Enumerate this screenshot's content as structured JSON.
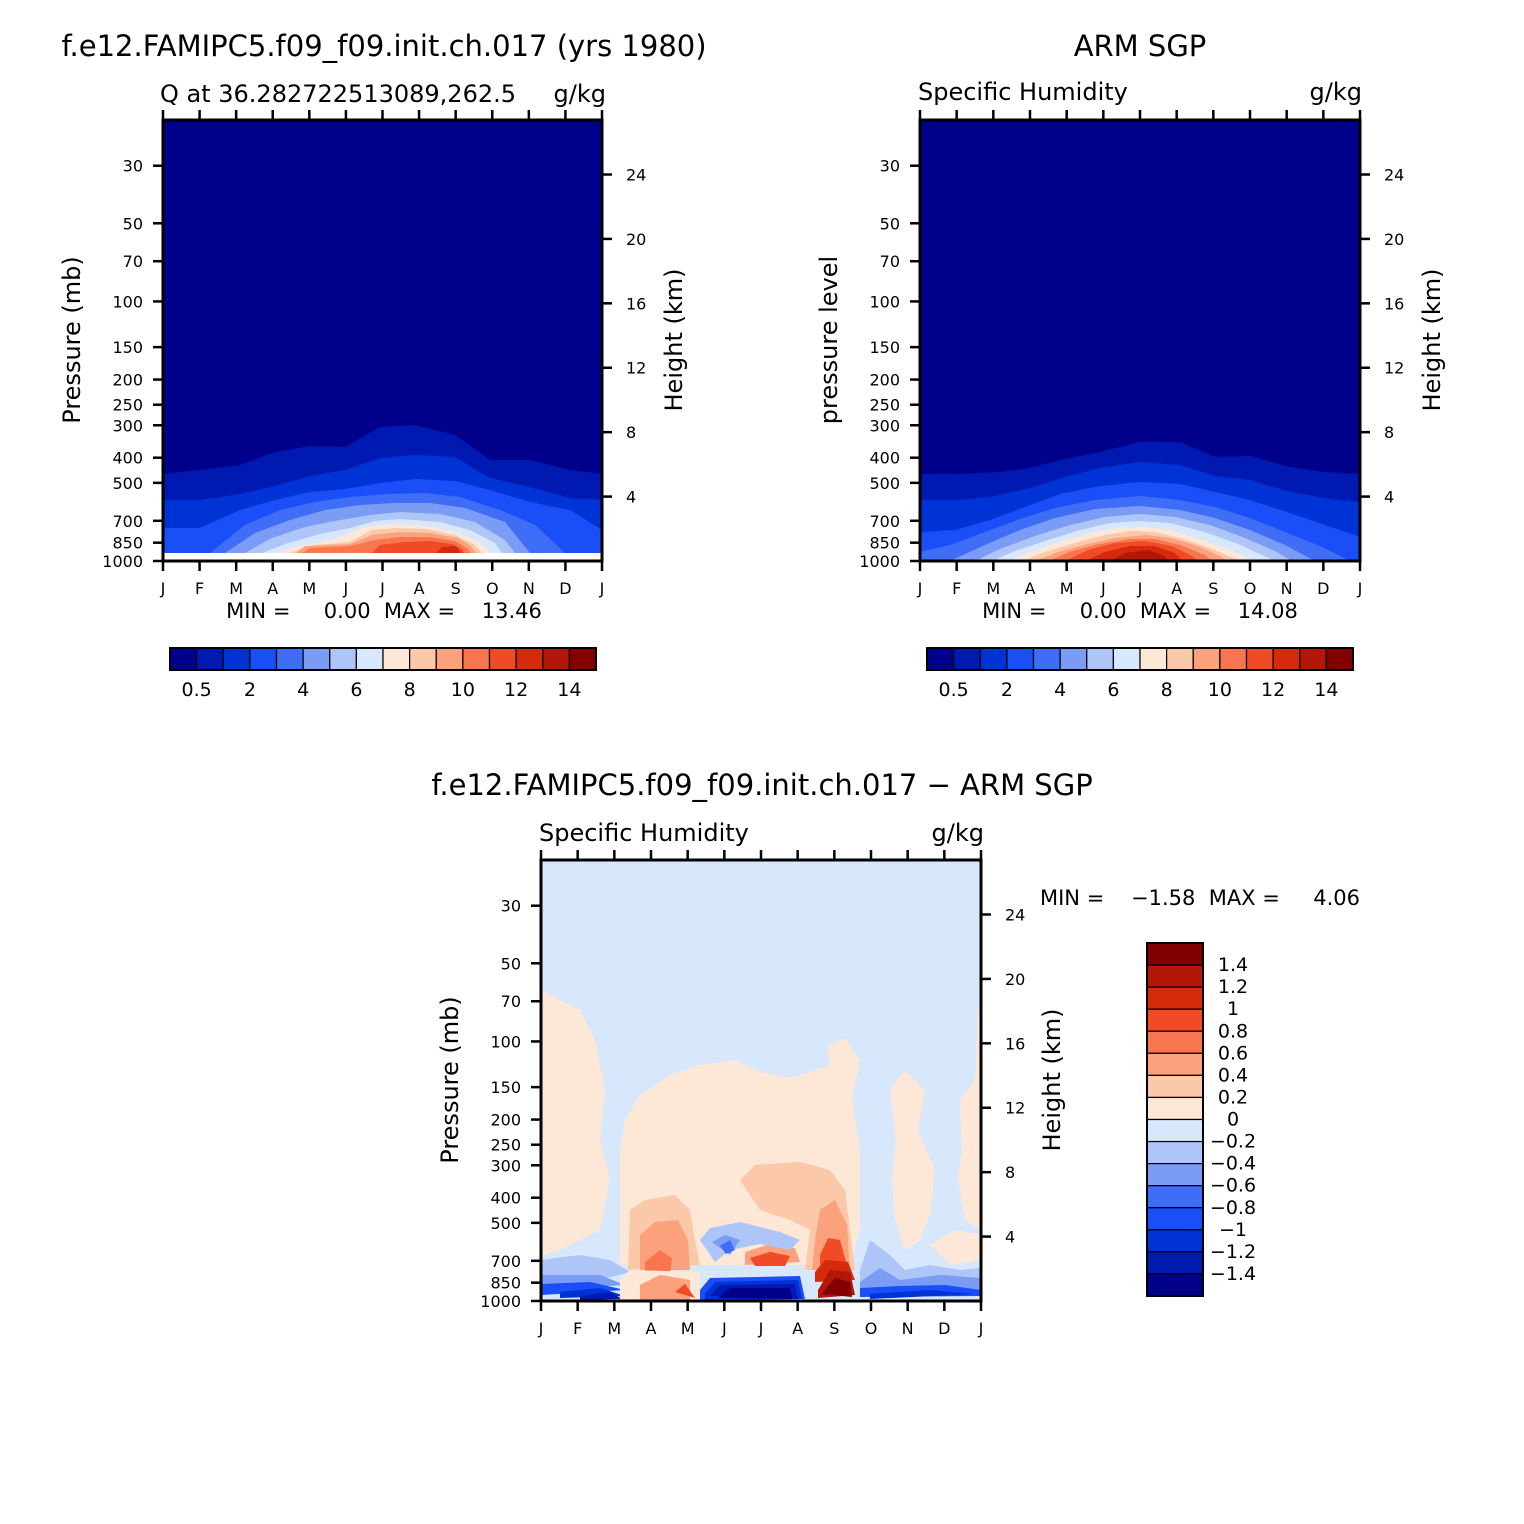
{
  "panels": [
    {
      "title": "f.e12.FAMIPC5.f09_f09.init.ch.017 (yrs 1980)",
      "left_string": "Q at 36.282722513089,262.5",
      "right_string": "g/kg",
      "y_label": "Pressure (mb)",
      "y2_label": "Height (km)",
      "min_max_text": "MIN =     0.00  MAX =    13.46"
    },
    {
      "title": "ARM SGP",
      "left_string": "Specific Humidity",
      "right_string": "g/kg",
      "y_label": "pressure level",
      "y2_label": "Height (km)",
      "min_max_text": "MIN =     0.00  MAX =    14.08"
    },
    {
      "title": "f.e12.FAMIPC5.f09_f09.init.ch.017 − ARM SGP",
      "left_string": "Specific Humidity",
      "right_string": "g/kg",
      "y_label": "Pressure (mb)",
      "y2_label": "Height (km)",
      "min_max_text": "MIN =    −1.58  MAX =     4.06"
    }
  ],
  "chart_data": [
    {
      "type": "heatmap",
      "title": "f.e12.FAMIPC5.f09_f09.init.ch.017 (yrs 1980)",
      "variable": "Q",
      "units": "g/kg",
      "x_ticks": [
        "J",
        "F",
        "M",
        "A",
        "M",
        "J",
        "J",
        "A",
        "S",
        "O",
        "N",
        "D",
        "J"
      ],
      "y_ticks": [
        30,
        50,
        70,
        100,
        150,
        200,
        250,
        300,
        400,
        500,
        700,
        850,
        1000
      ],
      "y2_ticks": [
        4,
        8,
        12,
        16,
        20,
        24
      ],
      "y_scale": "log",
      "y_reversed": true,
      "min": 0.0,
      "max": 13.46,
      "colorbar_labels": [
        "0.5",
        "2",
        "4",
        "6",
        "8",
        "10",
        "12",
        "14"
      ],
      "colorbar_colors": [
        "#00008b",
        "#0019b0",
        "#0033d6",
        "#1a4ff7",
        "#3f6df6",
        "#7b9cf5",
        "#aec5f7",
        "#d8e8fc",
        "#fde7d6",
        "#fcc8aa",
        "#fba27c",
        "#f8764f",
        "#f04a26",
        "#d62a0c",
        "#b31708",
        "#830000"
      ]
    },
    {
      "type": "heatmap",
      "title": "ARM SGP",
      "variable": "Specific Humidity",
      "units": "g/kg",
      "x_ticks": [
        "J",
        "F",
        "M",
        "A",
        "M",
        "J",
        "J",
        "A",
        "S",
        "O",
        "N",
        "D",
        "J"
      ],
      "y_ticks": [
        30,
        50,
        70,
        100,
        150,
        200,
        250,
        300,
        400,
        500,
        700,
        850,
        1000
      ],
      "y2_ticks": [
        4,
        8,
        12,
        16,
        20,
        24
      ],
      "y_scale": "log",
      "y_reversed": true,
      "min": 0.0,
      "max": 14.08,
      "colorbar_labels": [
        "0.5",
        "2",
        "4",
        "6",
        "8",
        "10",
        "12",
        "14"
      ],
      "colorbar_colors": [
        "#00008b",
        "#0019b0",
        "#0033d6",
        "#1a4ff7",
        "#3f6df6",
        "#7b9cf5",
        "#aec5f7",
        "#d8e8fc",
        "#fde7d6",
        "#fcc8aa",
        "#fba27c",
        "#f8764f",
        "#f04a26",
        "#d62a0c",
        "#b31708",
        "#830000"
      ]
    },
    {
      "type": "heatmap",
      "title": "f.e12.FAMIPC5.f09_f09.init.ch.017 − ARM SGP",
      "variable": "Specific Humidity",
      "units": "g/kg",
      "x_ticks": [
        "J",
        "F",
        "M",
        "A",
        "M",
        "J",
        "J",
        "A",
        "S",
        "O",
        "N",
        "D",
        "J"
      ],
      "y_ticks": [
        30,
        50,
        70,
        100,
        150,
        200,
        250,
        300,
        400,
        500,
        700,
        850,
        1000
      ],
      "y2_ticks": [
        4,
        8,
        12,
        16,
        20,
        24
      ],
      "y_scale": "log",
      "y_reversed": true,
      "min": -1.58,
      "max": 4.06,
      "colorbar_labels": [
        "1.4",
        "1.2",
        "1",
        "0.8",
        "0.6",
        "0.4",
        "0.2",
        "0",
        "−0.2",
        "−0.4",
        "−0.6",
        "−0.8",
        "−1",
        "−1.2",
        "−1.4"
      ],
      "colorbar_colors": [
        "#830000",
        "#b31708",
        "#d62a0c",
        "#f04a26",
        "#f8764f",
        "#fba27c",
        "#fcc8aa",
        "#fde7d6",
        "#d8e8fc",
        "#aec5f7",
        "#7b9cf5",
        "#3f6df6",
        "#1a4ff7",
        "#0033d6",
        "#0019b0",
        "#00008b"
      ]
    }
  ]
}
